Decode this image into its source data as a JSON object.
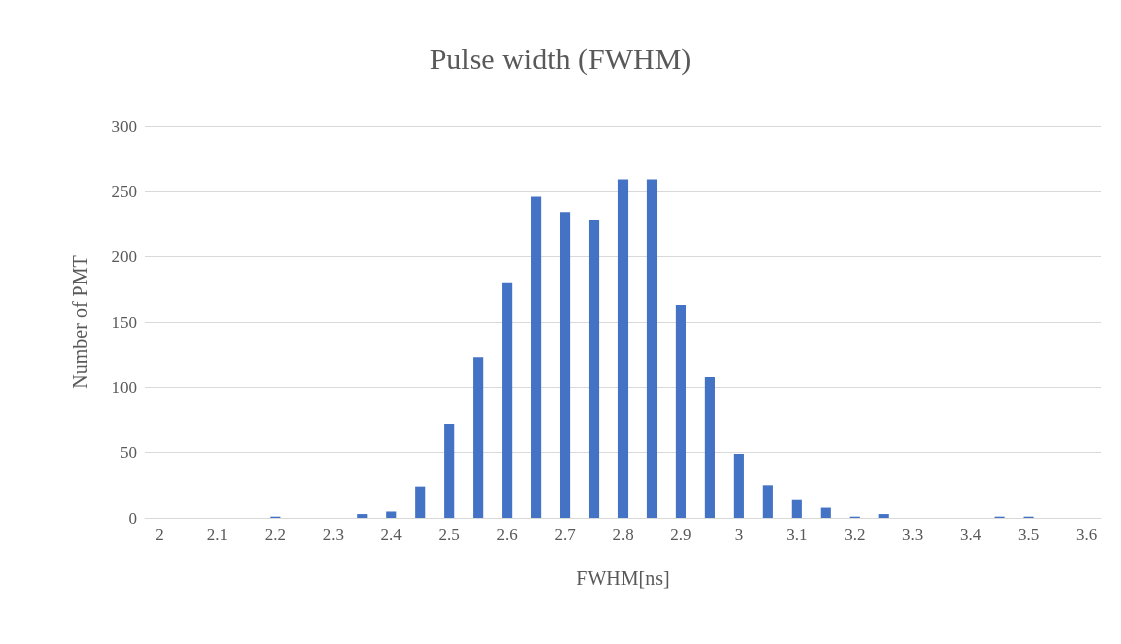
{
  "chart_data": {
    "type": "bar",
    "title": "Pulse width (FWHM)",
    "xlabel": "FWHM[ns]",
    "ylabel": "Number of PMT",
    "categories": [
      "2",
      null,
      "2.1",
      null,
      "2.2",
      null,
      "2.3",
      null,
      "2.4",
      null,
      "2.5",
      null,
      "2.6",
      null,
      "2.7",
      null,
      "2.8",
      null,
      "2.9",
      null,
      "3",
      null,
      "3.1",
      null,
      "3.2",
      null,
      "3.3",
      null,
      "3.4",
      null,
      "3.5",
      null,
      "3.6"
    ],
    "values": [
      0,
      0,
      0,
      0,
      1,
      0,
      0,
      3,
      5,
      24,
      72,
      123,
      180,
      246,
      234,
      228,
      259,
      259,
      163,
      108,
      49,
      25,
      14,
      8,
      1,
      3,
      0,
      0,
      0,
      1,
      1,
      0,
      0
    ],
    "color": "#4472c4",
    "ylim": [
      0,
      300
    ],
    "yticks": [
      0,
      50,
      100,
      150,
      200,
      250,
      300
    ],
    "grid": "y"
  }
}
